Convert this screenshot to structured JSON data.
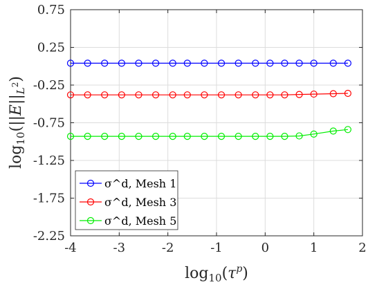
{
  "chart_data": {
    "type": "line",
    "xlabel": "log10(τ^p)",
    "ylabel": "log10(||E||_L²)",
    "xlim": [
      -4,
      2
    ],
    "ylim": [
      -2.25,
      0.75
    ],
    "xticks": [
      -4,
      -3,
      -2,
      -1,
      0,
      1,
      2
    ],
    "xtick_labels": [
      "-4",
      "-3",
      "-2",
      "-1",
      "0",
      "1",
      "2"
    ],
    "yticks": [
      0.75,
      0.25,
      -0.25,
      -0.75,
      -1.25,
      -1.75,
      -2.25
    ],
    "ytick_labels": [
      "0.75",
      "0.25",
      "-0.25",
      "-0.75",
      "-1.25",
      "-1.75",
      "-2.25"
    ],
    "grid": true,
    "legend_position": "bottom-left",
    "x": [
      -4.0,
      -3.65,
      -3.3,
      -2.95,
      -2.6,
      -2.25,
      -1.9,
      -1.6,
      -1.25,
      -0.9,
      -0.55,
      -0.2,
      0.1,
      0.4,
      0.7,
      1.0,
      1.4,
      1.7
    ],
    "series": [
      {
        "name": "σ^d, Mesh 1",
        "color": "#0000ff",
        "values": [
          0.04,
          0.04,
          0.04,
          0.04,
          0.04,
          0.04,
          0.04,
          0.04,
          0.04,
          0.04,
          0.04,
          0.04,
          0.04,
          0.04,
          0.04,
          0.04,
          0.04,
          0.04
        ]
      },
      {
        "name": "σ^d, Mesh 3",
        "color": "#ff0000",
        "values": [
          -0.38,
          -0.38,
          -0.38,
          -0.38,
          -0.38,
          -0.38,
          -0.38,
          -0.38,
          -0.38,
          -0.38,
          -0.38,
          -0.38,
          -0.38,
          -0.38,
          -0.375,
          -0.37,
          -0.365,
          -0.36
        ]
      },
      {
        "name": "σ^d, Mesh 5",
        "color": "#00ee00",
        "values": [
          -0.93,
          -0.93,
          -0.93,
          -0.93,
          -0.93,
          -0.93,
          -0.93,
          -0.93,
          -0.93,
          -0.93,
          -0.93,
          -0.93,
          -0.93,
          -0.93,
          -0.925,
          -0.9,
          -0.86,
          -0.84
        ]
      }
    ]
  }
}
